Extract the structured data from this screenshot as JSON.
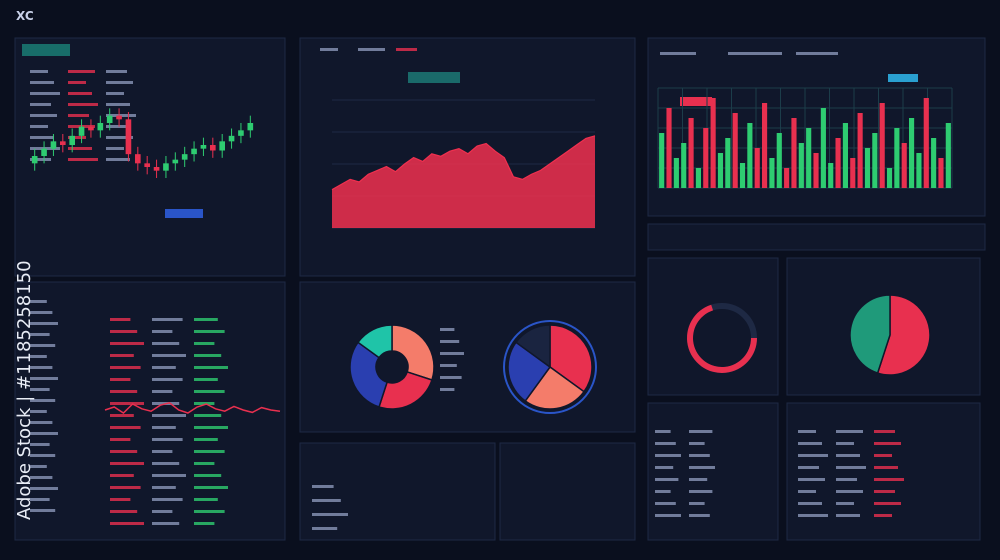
{
  "header": {
    "logo": "XC"
  },
  "watermark": "Adobe Stock | #1185258150",
  "candles": {
    "open": [
      40,
      44,
      48,
      52,
      50,
      55,
      60,
      58,
      62,
      66,
      64,
      45,
      40,
      38,
      36,
      40,
      42,
      45,
      48,
      50,
      47,
      52,
      55,
      58
    ],
    "close": [
      44,
      48,
      52,
      50,
      55,
      60,
      58,
      62,
      66,
      64,
      45,
      40,
      38,
      36,
      40,
      42,
      45,
      48,
      50,
      47,
      52,
      55,
      58,
      62
    ],
    "high": [
      48,
      52,
      56,
      56,
      59,
      64,
      64,
      66,
      70,
      70,
      68,
      49,
      44,
      42,
      44,
      46,
      49,
      52,
      54,
      54,
      56,
      59,
      62,
      66
    ],
    "low": [
      36,
      40,
      44,
      46,
      46,
      51,
      54,
      54,
      58,
      60,
      41,
      36,
      34,
      32,
      32,
      36,
      38,
      41,
      44,
      43,
      43,
      48,
      51,
      54
    ],
    "ylim": [
      20,
      80
    ],
    "up_color": "#2ecc71",
    "down_color": "#e8304f"
  },
  "area": {
    "values": [
      30,
      34,
      38,
      36,
      42,
      45,
      48,
      44,
      50,
      55,
      52,
      58,
      56,
      60,
      62,
      58,
      64,
      66,
      60,
      55,
      40,
      38,
      42,
      45,
      50,
      55,
      60,
      65,
      70,
      72
    ],
    "ylim": [
      0,
      100
    ],
    "color": "#f0304f"
  },
  "bars": {
    "values": [
      55,
      80,
      30,
      45,
      70,
      20,
      60,
      90,
      35,
      50,
      75,
      25,
      65,
      40,
      85,
      30,
      55,
      20,
      70,
      45,
      60,
      35,
      80,
      25,
      50,
      65,
      30,
      75,
      40,
      55,
      85,
      20,
      60,
      45,
      70,
      35,
      90,
      50,
      30,
      65
    ],
    "colors": [
      "#2ecc71",
      "#e8304f",
      "#2ecc71",
      "#2ecc71",
      "#e8304f",
      "#2ecc71",
      "#e8304f",
      "#e8304f",
      "#2ecc71",
      "#2ecc71",
      "#e8304f",
      "#2ecc71",
      "#2ecc71",
      "#e8304f",
      "#e8304f",
      "#2ecc71",
      "#2ecc71",
      "#e8304f",
      "#e8304f",
      "#2ecc71",
      "#2ecc71",
      "#e8304f",
      "#2ecc71",
      "#2ecc71",
      "#e8304f",
      "#2ecc71",
      "#e8304f",
      "#e8304f",
      "#2ecc71",
      "#2ecc71",
      "#e8304f",
      "#2ecc71",
      "#2ecc71",
      "#e8304f",
      "#2ecc71",
      "#2ecc71",
      "#e8304f",
      "#2ecc71",
      "#e8304f",
      "#2ecc71"
    ],
    "ylim": [
      0,
      100
    ]
  },
  "mini_line": {
    "values": [
      50,
      55,
      45,
      60,
      52,
      48,
      58,
      62,
      50,
      45,
      55,
      60,
      52,
      48,
      56,
      50,
      46,
      54,
      50,
      48
    ],
    "ylim": [
      0,
      100
    ],
    "color": "#e8304f"
  },
  "donut": {
    "values": [
      30,
      25,
      30,
      15
    ],
    "colors": [
      "#f47c6a",
      "#e8304f",
      "#2a3fb0",
      "#1fc4a8"
    ]
  },
  "pie": {
    "values": [
      35,
      25,
      25,
      15
    ],
    "colors": [
      "#e8304f",
      "#f47c6a",
      "#2a3fb0",
      "#1a2440"
    ]
  },
  "gauge": {
    "value": 70,
    "max": 100,
    "color": "#e8304f"
  },
  "pie_right": {
    "values": [
      55,
      45
    ],
    "colors": [
      "#e8304f",
      "#1f9a7a"
    ]
  }
}
